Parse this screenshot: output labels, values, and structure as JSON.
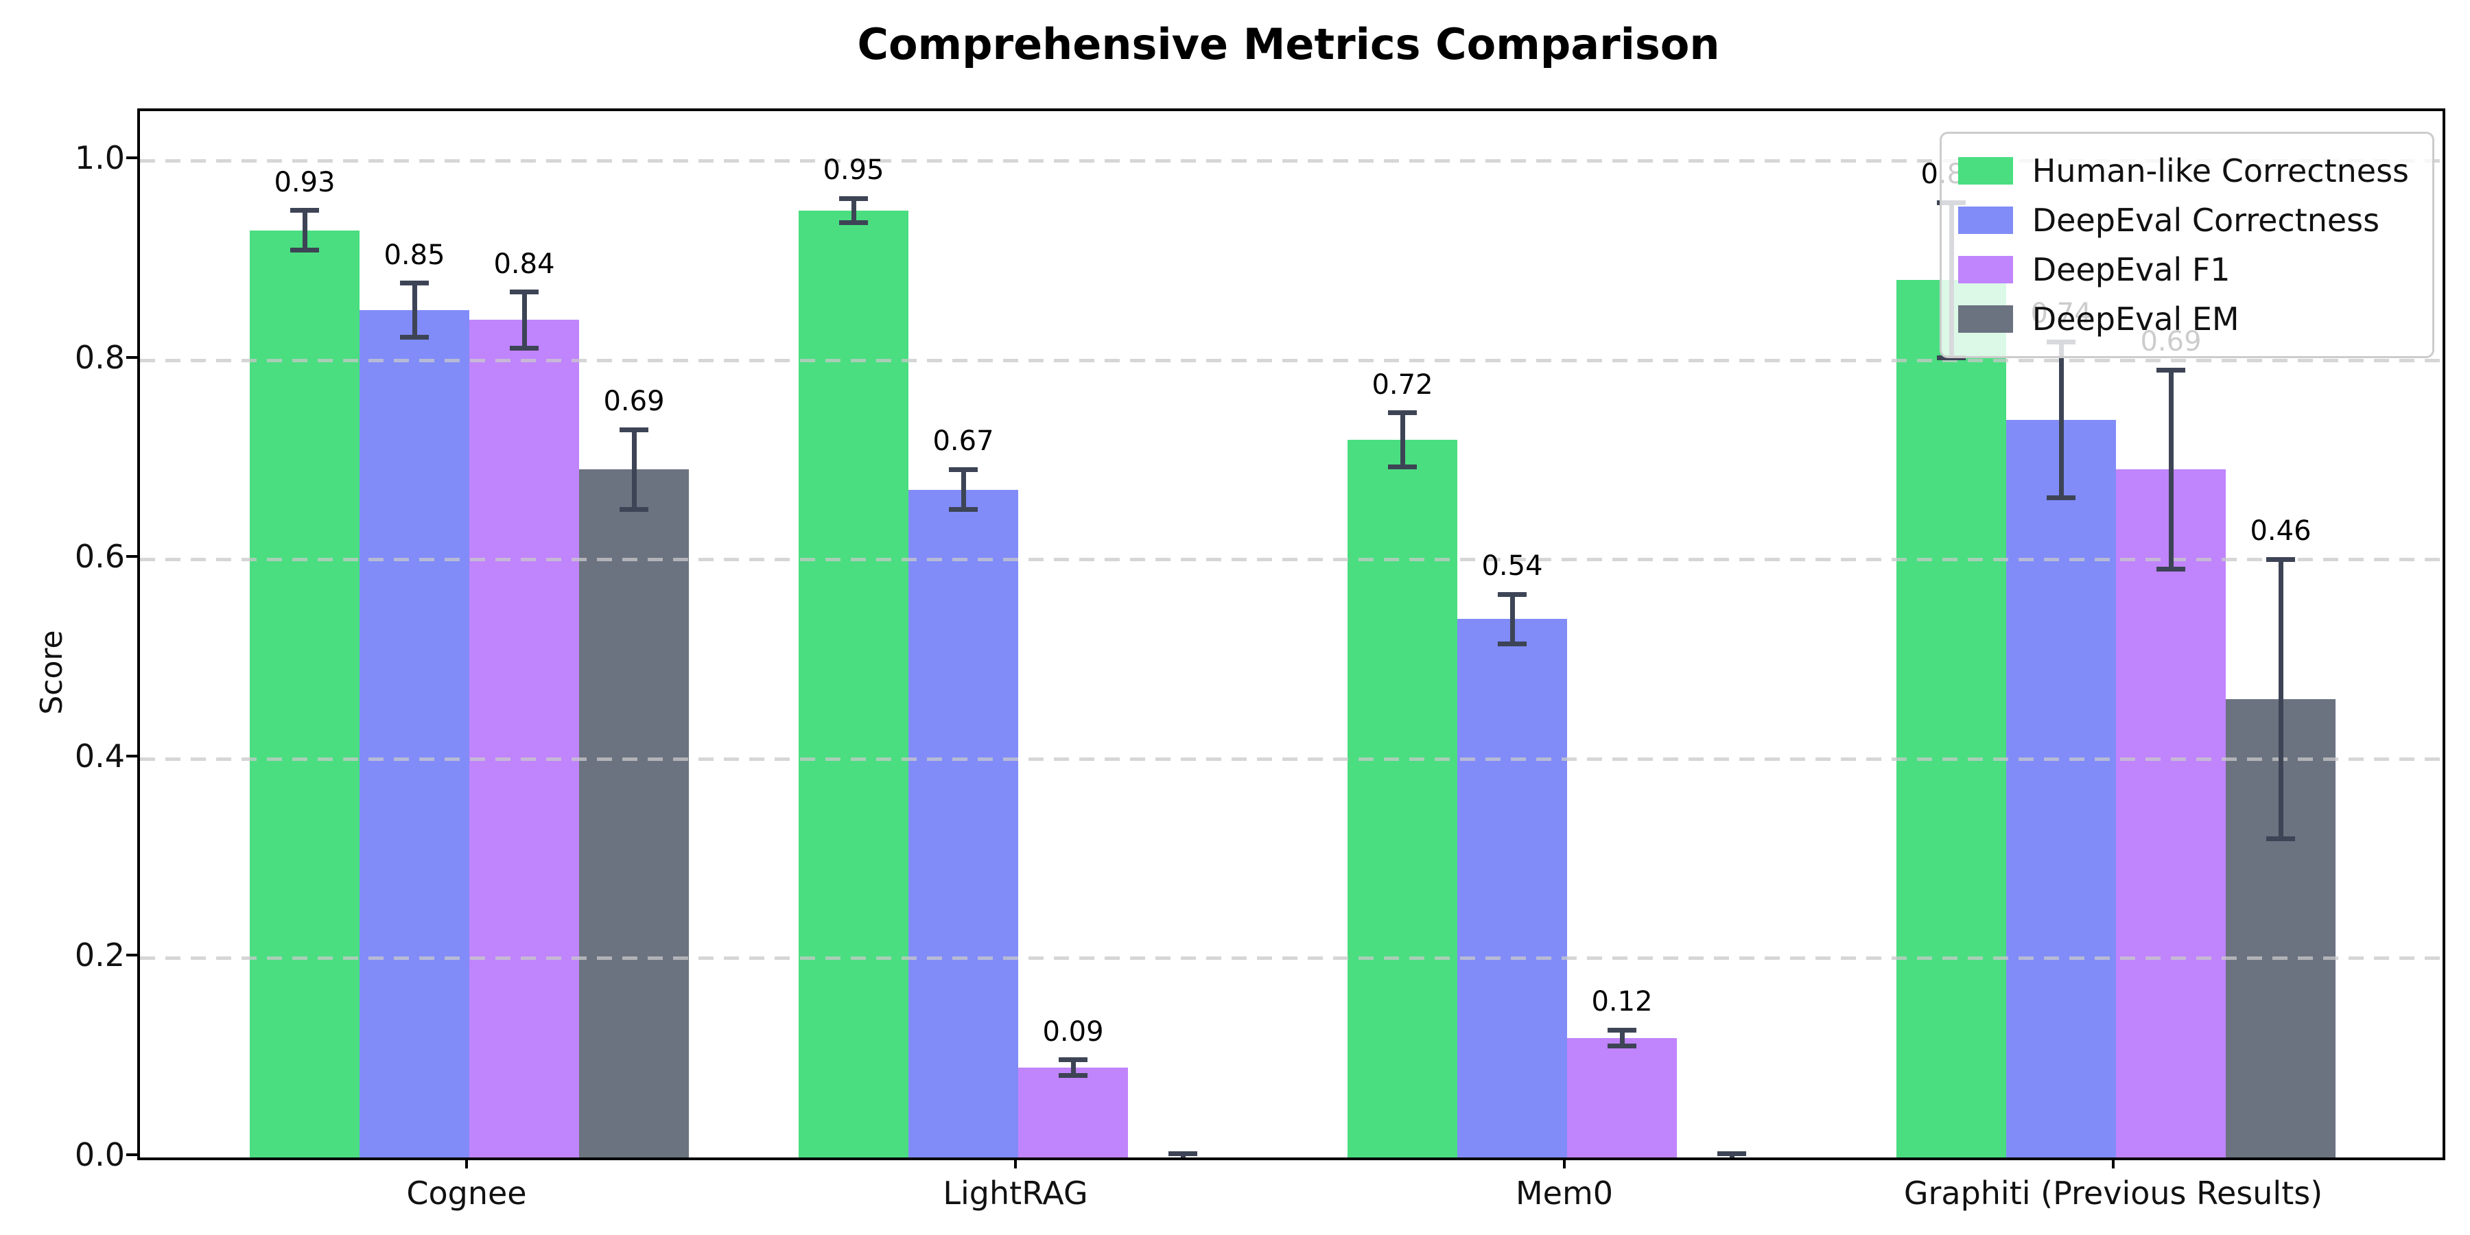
{
  "chart_data": {
    "type": "bar",
    "title": "Comprehensive Metrics Comparison",
    "ylabel": "Score",
    "xlabel": "",
    "categories": [
      "Cognee",
      "LightRAG",
      "Mem0",
      "Graphiti (Previous Results)"
    ],
    "ytick_labels": [
      "0.0",
      "0.2",
      "0.4",
      "0.6",
      "0.8",
      "1.0"
    ],
    "yticks": [
      0.0,
      0.2,
      0.4,
      0.6,
      0.8,
      1.0
    ],
    "ylim": [
      0.0,
      1.05
    ],
    "grid": {
      "axis": "y",
      "style": "dashed",
      "color": "#c9c9c9",
      "drawn_over_bars": true
    },
    "legend": {
      "position": "upper-right",
      "entries": [
        "Human-like Correctness",
        "DeepEval Correctness",
        "DeepEval F1",
        "DeepEval EM"
      ]
    },
    "series": [
      {
        "name": "Human-like Correctness",
        "color": "#4ade80",
        "values": [
          0.93,
          0.95,
          0.72,
          0.88
        ],
        "errors": [
          0.02,
          0.012,
          0.027,
          0.078
        ],
        "bar_labels": [
          "0.93",
          "0.95",
          "0.72",
          "0.88"
        ]
      },
      {
        "name": "DeepEval Correctness",
        "color": "#818cf8",
        "values": [
          0.85,
          0.67,
          0.54,
          0.74
        ],
        "errors": [
          0.027,
          0.02,
          0.025,
          0.078
        ],
        "bar_labels": [
          "0.85",
          "0.67",
          "0.54",
          "0.74"
        ]
      },
      {
        "name": "DeepEval F1",
        "color": "#c084fc",
        "values": [
          0.84,
          0.09,
          0.12,
          0.69
        ],
        "errors": [
          0.028,
          0.008,
          0.008,
          0.1
        ],
        "bar_labels": [
          "0.84",
          "0.09",
          "0.12",
          "0.69"
        ]
      },
      {
        "name": "DeepEval EM",
        "color": "#6b7280",
        "values": [
          0.69,
          0.0,
          0.0,
          0.46
        ],
        "errors": [
          0.04,
          0.004,
          0.004,
          0.14
        ],
        "bar_labels": [
          "0.69",
          "",
          "",
          "0.46"
        ]
      }
    ],
    "style": {
      "error_bar_color": "#3d4455",
      "spine_color": "#000000",
      "background": "#ffffff"
    }
  }
}
